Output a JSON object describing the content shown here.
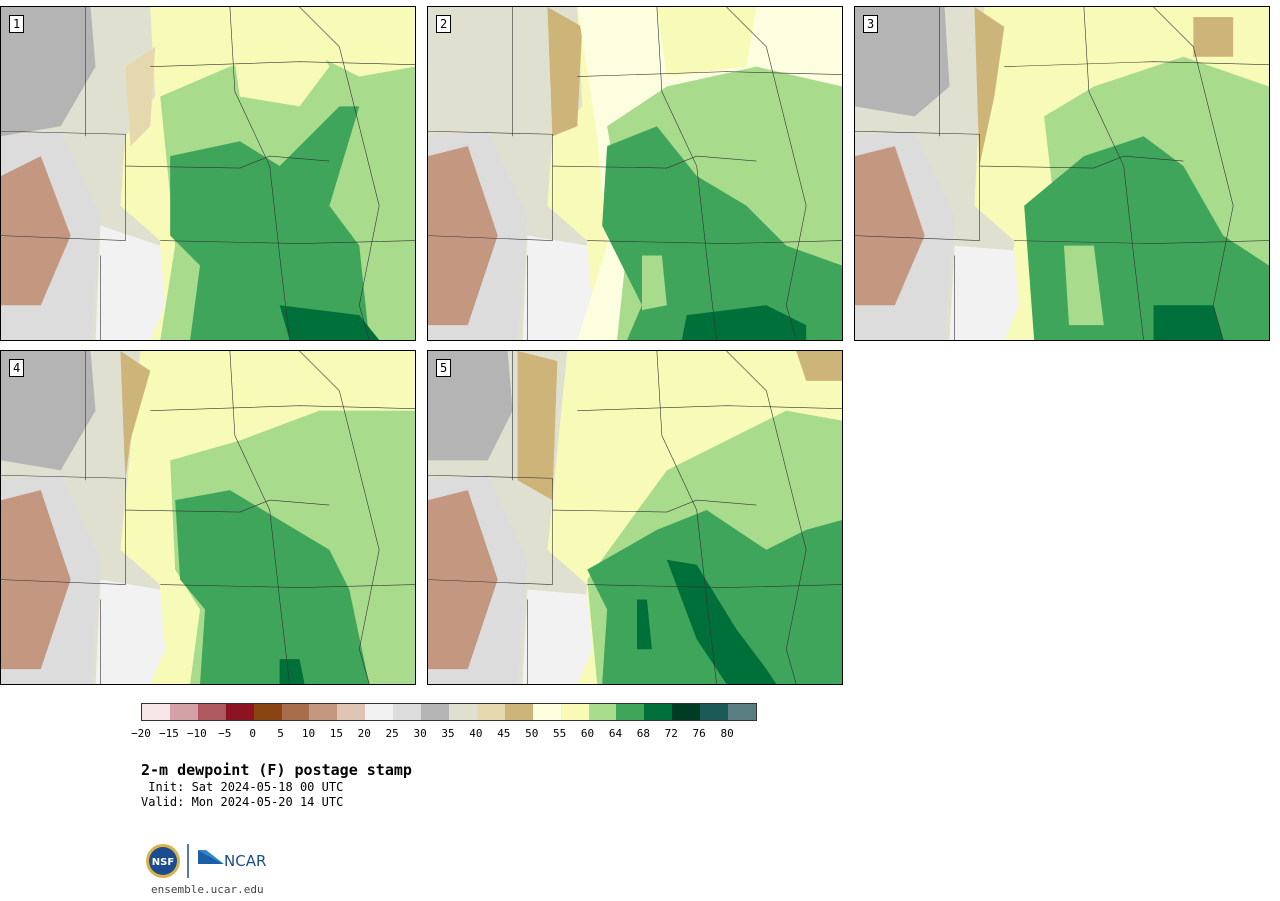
{
  "panels": [
    {
      "label": "1"
    },
    {
      "label": "2"
    },
    {
      "label": "3"
    },
    {
      "label": "4"
    },
    {
      "label": "5"
    }
  ],
  "colorbar": {
    "colors": [
      "#f6e6e8",
      "#d4a1a6",
      "#b0585f",
      "#8c1320",
      "#8a4412",
      "#a86e4c",
      "#c49880",
      "#e0c4b4",
      "#f2f2f2",
      "#dcdcdc",
      "#b4b4b4",
      "#e0e0d0",
      "#e6d8ae",
      "#cdb479",
      "#fdfde0",
      "#f8fbb8",
      "#a8dc8c",
      "#3fa55a",
      "#00703a",
      "#003c24",
      "#1c5a58",
      "#5a7e82"
    ],
    "tick_labels": [
      "−20",
      "−15",
      "−10",
      "−5",
      "0",
      "5",
      "10",
      "15",
      "20",
      "25",
      "30",
      "35",
      "40",
      "45",
      "50",
      "55",
      "60",
      "64",
      "68",
      "72",
      "76",
      "80"
    ]
  },
  "title": "2-m dewpoint (F) postage stamp",
  "init": " Init: Sat 2024-05-18 00 UTC",
  "valid": "Valid: Mon 2024-05-20 14 UTC",
  "logo": {
    "nsf_text": "NSF",
    "ncar_text": "NCAR"
  },
  "site": "ensemble.ucar.edu"
}
